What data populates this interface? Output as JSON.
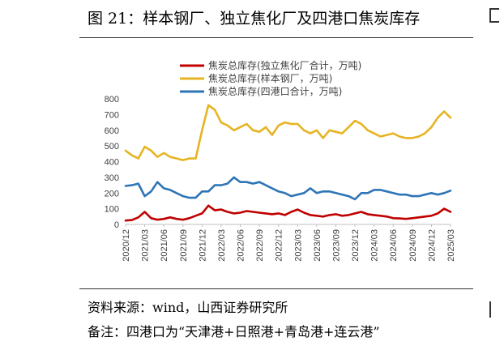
{
  "figure": {
    "title": "图 21：样本钢厂、独立焦化厂及四港口焦炭库存",
    "source": "资料来源：wind，山西证券研究所",
    "note": "备注：四港口为“天津港+日照港+青岛港+连云港”"
  },
  "chart_data": {
    "type": "line",
    "title": "",
    "xlabel": "",
    "ylabel": "",
    "ylim": [
      0,
      800
    ],
    "yticks": [
      0,
      100,
      200,
      300,
      400,
      500,
      600,
      700,
      800
    ],
    "grid": false,
    "legend_position": "top",
    "x_tick_labels": [
      "2020/12",
      "2021/03",
      "2021/06",
      "2021/09",
      "2021/12",
      "2022/03",
      "2022/06",
      "2022/09",
      "2022/12",
      "2023/03",
      "2023/06",
      "2023/09",
      "2023/12",
      "2024/03",
      "2024/06",
      "2024/09",
      "2024/12",
      "2025/03"
    ],
    "x": [
      "2020/12",
      "2021/01",
      "2021/02",
      "2021/03",
      "2021/04",
      "2021/05",
      "2021/06",
      "2021/07",
      "2021/08",
      "2021/09",
      "2021/10",
      "2021/11",
      "2021/12",
      "2022/01",
      "2022/02",
      "2022/03",
      "2022/04",
      "2022/05",
      "2022/06",
      "2022/07",
      "2022/08",
      "2022/09",
      "2022/10",
      "2022/11",
      "2022/12",
      "2023/01",
      "2023/02",
      "2023/03",
      "2023/04",
      "2023/05",
      "2023/06",
      "2023/07",
      "2023/08",
      "2023/09",
      "2023/10",
      "2023/11",
      "2023/12",
      "2024/01",
      "2024/02",
      "2024/03",
      "2024/04",
      "2024/05",
      "2024/06",
      "2024/07",
      "2024/08",
      "2024/09",
      "2024/10",
      "2024/11",
      "2024/12",
      "2025/01",
      "2025/02",
      "2025/03"
    ],
    "series": [
      {
        "name": "焦炭总库存(独立焦化厂合计，万吨)",
        "color": "#c00000",
        "values": [
          25,
          28,
          45,
          80,
          40,
          30,
          35,
          45,
          35,
          30,
          40,
          55,
          70,
          120,
          90,
          95,
          80,
          70,
          75,
          85,
          80,
          75,
          70,
          65,
          70,
          60,
          80,
          95,
          75,
          60,
          55,
          50,
          60,
          65,
          55,
          60,
          70,
          80,
          65,
          60,
          55,
          50,
          40,
          38,
          35,
          40,
          45,
          50,
          55,
          70,
          100,
          80
        ]
      },
      {
        "name": "焦炭总库存(样本钢厂，万吨)",
        "color": "#e6b422",
        "values": [
          470,
          440,
          420,
          495,
          470,
          430,
          455,
          430,
          420,
          410,
          420,
          420,
          600,
          760,
          730,
          650,
          630,
          600,
          620,
          640,
          600,
          590,
          620,
          570,
          630,
          650,
          640,
          640,
          600,
          580,
          600,
          550,
          600,
          590,
          580,
          620,
          660,
          640,
          600,
          580,
          560,
          570,
          580,
          560,
          550,
          550,
          560,
          580,
          620,
          680,
          720,
          680
        ]
      },
      {
        "name": "焦炭总库存(四港口合计，万吨)",
        "color": "#2e75b6",
        "values": [
          245,
          250,
          260,
          180,
          210,
          270,
          230,
          220,
          200,
          180,
          170,
          170,
          210,
          210,
          250,
          250,
          260,
          300,
          270,
          270,
          260,
          270,
          250,
          230,
          210,
          200,
          180,
          190,
          200,
          230,
          200,
          210,
          210,
          200,
          190,
          180,
          160,
          200,
          200,
          220,
          220,
          210,
          200,
          190,
          190,
          180,
          180,
          190,
          200,
          190,
          200,
          215
        ]
      }
    ]
  }
}
